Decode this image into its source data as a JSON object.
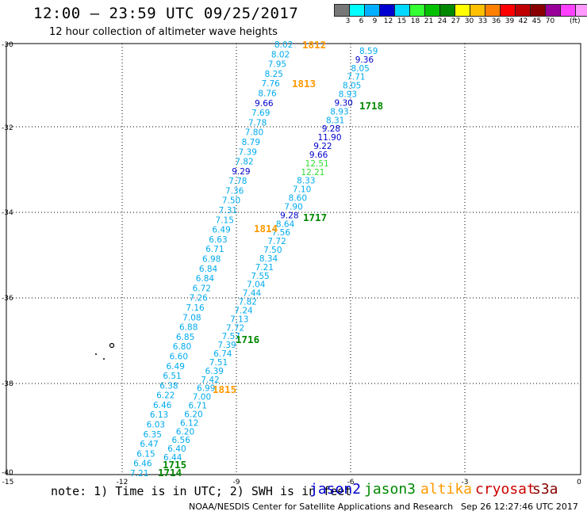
{
  "header": {
    "title": "12:00 — 23:59 UTC 09/25/2017",
    "subtitle": "12 hour collection of altimeter wave heights"
  },
  "legend": {
    "colors": [
      "#777777",
      "#00ffff",
      "#00b0ff",
      "#0000d0",
      "#00d8ff",
      "#33ff33",
      "#00c000",
      "#008800",
      "#ffff00",
      "#ffc000",
      "#ff8000",
      "#ff0000",
      "#c00000",
      "#880000",
      "#990099",
      "#ff40ff",
      "#ff99ff",
      "#000000"
    ],
    "labels": [
      "3",
      "6",
      "9",
      "12",
      "15",
      "18",
      "21",
      "24",
      "27",
      "30",
      "33",
      "36",
      "39",
      "42",
      "45",
      "70"
    ],
    "unit": "(ft)"
  },
  "axes": {
    "lat_labels": [
      "-30",
      "-32",
      "-34",
      "-36",
      "-38",
      "-40"
    ],
    "lon_labels": [
      "-15",
      "-12",
      "-9",
      "-6",
      "-3",
      "0"
    ]
  },
  "pass_labels": [
    {
      "text": "1812",
      "color": "#ff9900"
    },
    {
      "text": "1813",
      "color": "#ff9900"
    },
    {
      "text": "1718",
      "color": "#008800"
    },
    {
      "text": "1717",
      "color": "#008800"
    },
    {
      "text": "1814",
      "color": "#ff9900"
    },
    {
      "text": "1716",
      "color": "#008800"
    },
    {
      "text": "1815",
      "color": "#ff9900"
    },
    {
      "text": "1715",
      "color": "#008800"
    },
    {
      "text": "1714",
      "color": "#008800"
    }
  ],
  "tracks": {
    "left": [
      "8.02",
      "8.02",
      "7.95",
      "8.25",
      "7.76",
      "8.76",
      "9.66",
      "7.69",
      "7.78",
      "7.80",
      "8.79",
      "7.39",
      "7.82",
      "9.29",
      "7.78",
      "7.36",
      "7.50",
      "7.31",
      "7.15",
      "6.49",
      "6.63",
      "6.71",
      "6.98",
      "6.84",
      "6.84",
      "6.72",
      "7.26",
      "7.16",
      "7.08",
      "6.88",
      "6.85",
      "6.80",
      "6.60",
      "6.49",
      "6.51",
      "6.38",
      "6.22",
      "6.46",
      "6.13",
      "6.03",
      "6.35",
      "6.47",
      "6.15",
      "6.46",
      "7.21"
    ],
    "left_colors": [
      "#00aaee",
      "#00aaee",
      "#00aaee",
      "#00aaee",
      "#00aaee",
      "#00aaee",
      "#0000cc",
      "#00aaee",
      "#00aaee",
      "#00aaee",
      "#00aaee",
      "#00aaee",
      "#00aaee",
      "#0000cc",
      "#00aaee",
      "#00aaee",
      "#00aaee",
      "#00aaee",
      "#00aaee",
      "#00aaee",
      "#00aaee",
      "#00aaee",
      "#00aaee",
      "#00aaee",
      "#00aaee",
      "#00aaee",
      "#00aaee",
      "#00aaee",
      "#00aaee",
      "#00aaee",
      "#00aaee",
      "#00aaee",
      "#00aaee",
      "#00aaee",
      "#00aaee",
      "#00aaee",
      "#00aaee",
      "#00aaee",
      "#00aaee",
      "#00aaee",
      "#00aaee",
      "#00aaee",
      "#00aaee",
      "#00aaee",
      "#00aaee"
    ],
    "right": [
      "8.59",
      "9.36",
      "8.05",
      "7.71",
      "8.05",
      "8.93",
      "9.30",
      "8.93",
      "8.31",
      "9.28",
      "11.90",
      "9.22",
      "9.66",
      "12.51",
      "12.21",
      "8.33",
      "7.10",
      "8.60",
      "7.90",
      "9.28",
      "8.64",
      "7.56",
      "7.72",
      "7.50",
      "8.34",
      "7.21",
      "7.55",
      "7.04",
      "7.44",
      "7.82",
      "7.24",
      "7.13",
      "7.72",
      "7.57",
      "7.39",
      "6.74",
      "7.51",
      "6.39",
      "7.42",
      "6.99",
      "7.00",
      "6.71",
      "6.20",
      "6.12",
      "6.20",
      "6.56",
      "6.40",
      "6.44"
    ],
    "right_colors": [
      "#00aaee",
      "#0000cc",
      "#00aaee",
      "#00aaee",
      "#00aaee",
      "#00aaee",
      "#0000cc",
      "#00aaee",
      "#00aaee",
      "#0000cc",
      "#0000cc",
      "#0000cc",
      "#0000cc",
      "#33dd33",
      "#33dd33",
      "#00aaee",
      "#00aaee",
      "#00aaee",
      "#00aaee",
      "#0000cc",
      "#00aaee",
      "#00aaee",
      "#00aaee",
      "#00aaee",
      "#00aaee",
      "#00aaee",
      "#00aaee",
      "#00aaee",
      "#00aaee",
      "#00aaee",
      "#00aaee",
      "#00aaee",
      "#00aaee",
      "#00aaee",
      "#00aaee",
      "#00aaee",
      "#00aaee",
      "#00aaee",
      "#00aaee",
      "#00aaee",
      "#00aaee",
      "#00aaee",
      "#00aaee",
      "#00aaee",
      "#00aaee",
      "#00aaee",
      "#00aaee",
      "#00aaee"
    ]
  },
  "note": "note: 1) Time is in UTC; 2) SWH is in feet",
  "satellites": [
    {
      "name": "jason2",
      "color": "#0000cc"
    },
    {
      "name": "jason3",
      "color": "#008800"
    },
    {
      "name": "altika",
      "color": "#ff9900"
    },
    {
      "name": "cryosat",
      "color": "#cc0000"
    },
    {
      "name": "s3a",
      "color": "#880000"
    }
  ],
  "footer": {
    "credit": "NOAA/NESDIS Center for Satellite Applications and Research",
    "timestamp": "Sep 26 12:27:46 UTC 2017"
  }
}
